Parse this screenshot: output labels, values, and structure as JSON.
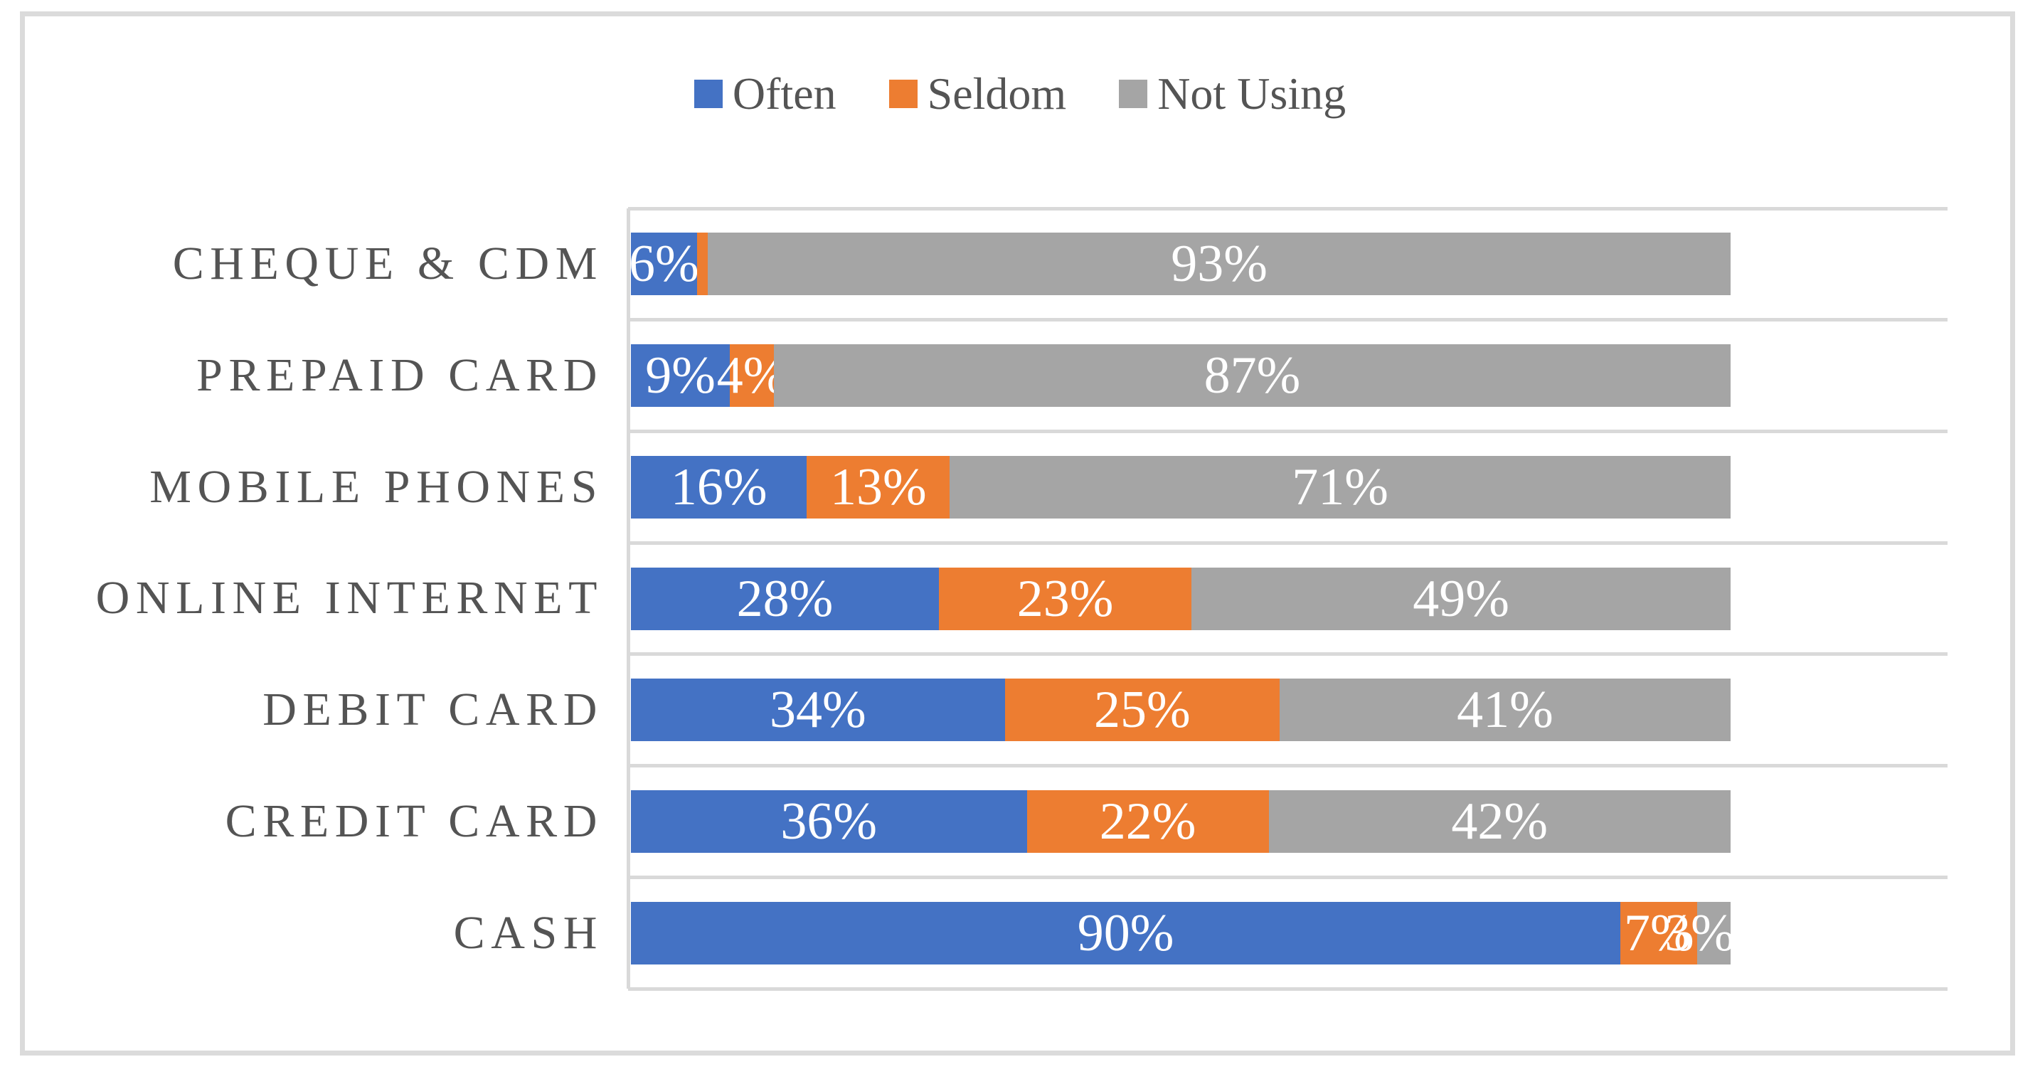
{
  "figure": {
    "background": "#ffffff",
    "border_color": "#DBDBDB"
  },
  "chart_data": {
    "type": "bar",
    "orientation": "horizontal",
    "stacked": true,
    "title": "",
    "categories": [
      "CHEQUE & CDM",
      "PREPAID CARD",
      "MOBILE PHONES",
      "ONLINE INTERNET",
      "DEBIT CARD",
      "CREDIT CARD",
      "CASH"
    ],
    "series": [
      {
        "name": "Often",
        "color": "#4472C4",
        "values": [
          6,
          9,
          16,
          28,
          34,
          36,
          90
        ]
      },
      {
        "name": "Seldom",
        "color": "#ED7D31",
        "values": [
          1,
          4,
          13,
          23,
          25,
          22,
          7
        ]
      },
      {
        "name": "Not Using",
        "color": "#A5A5A5",
        "values": [
          93,
          87,
          71,
          49,
          41,
          42,
          3
        ]
      }
    ],
    "value_suffix": "%",
    "xlim": [
      0,
      120
    ],
    "legend_position": "top-center",
    "data_label_position": "inside-center",
    "data_label_color": "#ffffff",
    "gridlines": "horizontal-category-separators",
    "gridline_color": "#D9D9D9",
    "axis_line_color": "#D9D9D9",
    "category_label_color": "#545454",
    "legend_label_color": "#545454"
  }
}
